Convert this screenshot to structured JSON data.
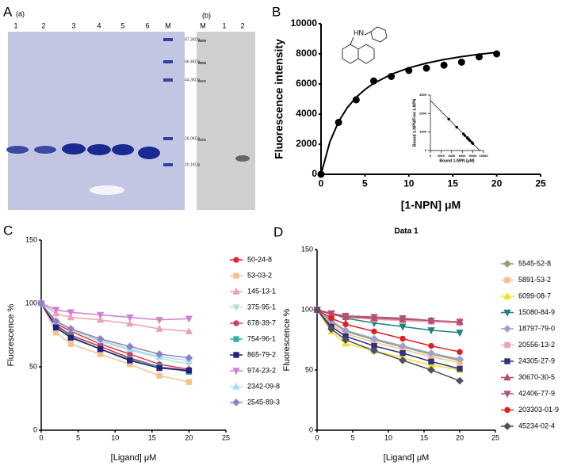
{
  "figure": {
    "panel_labels": [
      "A",
      "B",
      "C",
      "D"
    ],
    "gel_a": {
      "label": "(a)",
      "lanes": [
        "1",
        "2",
        "3",
        "4",
        "5",
        "6",
        "M"
      ],
      "markers": [
        "97.2KDa",
        "66.4KDa",
        "44.3KDa",
        "29.0KDa",
        "20.1KDa"
      ]
    },
    "gel_b": {
      "label": "(b)",
      "lanes": [
        "M",
        "1",
        "2"
      ]
    },
    "molecule_label": "HN"
  },
  "chart_data": [
    {
      "type": "line",
      "xlabel": "[1-NPN]  μM",
      "ylabel": "Fluorescence intensity",
      "xlim": [
        0,
        25
      ],
      "xticks": [
        0,
        5,
        10,
        15,
        20,
        25
      ],
      "ylim": [
        0,
        10000
      ],
      "yticks": [
        0,
        2000,
        4000,
        6000,
        8000,
        10000
      ],
      "series": [
        {
          "color": "#000000",
          "marker": "circle",
          "line": false,
          "x": [
            0,
            2,
            4,
            6,
            8,
            10,
            12,
            14,
            16,
            18,
            20
          ],
          "values": [
            0,
            3450,
            4950,
            6200,
            6500,
            6900,
            7050,
            7250,
            7450,
            7800,
            8000
          ]
        },
        {
          "color": "#000000",
          "line": true,
          "x": [
            0,
            1,
            2,
            3,
            4,
            5,
            6,
            8,
            10,
            12,
            14,
            16,
            18,
            20
          ],
          "values": [
            0,
            2146,
            3500,
            4433,
            5114,
            5633,
            6042,
            6645,
            7069,
            7382,
            7624,
            7816,
            7971,
            8101
          ]
        }
      ]
    },
    {
      "type": "line",
      "xlabel": "Bound 1-NPN (μM)",
      "ylabel": "Bound 1-NPN/Free 1-NPN",
      "xlim": [
        0,
        10000
      ],
      "xticks": [
        0,
        2000,
        4000,
        6000,
        8000,
        10000
      ],
      "ylim": [
        0,
        3000
      ],
      "yticks": [
        0,
        1000,
        2000,
        3000
      ],
      "series": [
        {
          "color": "#000000",
          "marker": "circle",
          "line": false,
          "x": [
            3450,
            4950,
            6200,
            6500,
            6900,
            7050,
            7250,
            7450,
            7800,
            8000
          ],
          "values": [
            1700,
            1260,
            900,
            810,
            700,
            650,
            595,
            535,
            435,
            375
          ]
        },
        {
          "color": "#000000",
          "line": true,
          "x": [
            0,
            9300
          ],
          "values": [
            2700,
            0
          ]
        }
      ]
    },
    {
      "type": "line",
      "xlabel": "[Ligand] μM",
      "ylabel": "Fluorescence %",
      "xlim": [
        0,
        25
      ],
      "xticks": [
        0,
        5,
        10,
        15,
        20,
        25
      ],
      "ylim": [
        0,
        150
      ],
      "yticks": [
        0,
        50,
        100,
        150
      ],
      "legend": "right",
      "x": [
        0,
        2,
        4,
        8,
        12,
        16,
        20
      ],
      "series": [
        {
          "name": "50-24-8",
          "color": "#e02828",
          "marker": "circle",
          "values": [
            100,
            83,
            75,
            66,
            57,
            50,
            47
          ]
        },
        {
          "name": "53-03-2",
          "color": "#f5c28a",
          "marker": "square",
          "values": [
            100,
            77,
            68,
            60,
            52,
            43,
            38
          ]
        },
        {
          "name": "145-13-1",
          "color": "#f0a0b4",
          "marker": "triangle",
          "values": [
            100,
            92,
            89,
            87,
            84,
            80,
            78
          ]
        },
        {
          "name": "375-95-1",
          "color": "#c0e0c8",
          "marker": "triangle-down",
          "values": [
            100,
            85,
            79,
            70,
            63,
            57,
            52
          ]
        },
        {
          "name": "678-39-7",
          "color": "#d04060",
          "marker": "circle",
          "values": [
            100,
            84,
            78,
            68,
            60,
            52,
            48
          ]
        },
        {
          "name": "754-96-1",
          "color": "#30b0b0",
          "marker": "square",
          "values": [
            100,
            82,
            74,
            64,
            56,
            50,
            46
          ]
        },
        {
          "name": "865-79-2",
          "color": "#202080",
          "marker": "square",
          "values": [
            100,
            81,
            73,
            64,
            55,
            49,
            47
          ]
        },
        {
          "name": "974-23-2",
          "color": "#d080d0",
          "marker": "triangle-down",
          "values": [
            100,
            95,
            93,
            91,
            89,
            87,
            88
          ]
        },
        {
          "name": "2342-09-8",
          "color": "#a0e0f0",
          "marker": "triangle",
          "values": [
            100,
            86,
            80,
            71,
            64,
            58,
            55
          ]
        },
        {
          "name": "2545-89-3",
          "color": "#9080c8",
          "marker": "diamond",
          "values": [
            100,
            86,
            80,
            72,
            66,
            60,
            57
          ]
        }
      ]
    },
    {
      "type": "line",
      "title": "Data 1",
      "xlabel": "[Ligand] μM",
      "ylabel": "Fluorescence %",
      "xlim": [
        0,
        25
      ],
      "xticks": [
        0,
        5,
        10,
        15,
        20,
        25
      ],
      "ylim": [
        0,
        150
      ],
      "yticks": [
        0,
        50,
        100,
        150
      ],
      "legend": "right",
      "x": [
        0,
        2,
        4,
        8,
        12,
        16,
        20
      ],
      "series": [
        {
          "name": "5545-52-8",
          "color": "#90a070",
          "marker": "diamond",
          "values": [
            100,
            90,
            82,
            75,
            69,
            63,
            58
          ]
        },
        {
          "name": "5891-53-2",
          "color": "#f5c090",
          "marker": "square",
          "values": [
            100,
            88,
            80,
            73,
            67,
            61,
            56
          ]
        },
        {
          "name": "6099-08-7",
          "color": "#f0e020",
          "marker": "triangle",
          "values": [
            100,
            82,
            72,
            66,
            60,
            54,
            50
          ]
        },
        {
          "name": "15080-84-9",
          "color": "#208080",
          "marker": "triangle-down",
          "values": [
            100,
            97,
            93,
            89,
            86,
            83,
            81
          ]
        },
        {
          "name": "18797-79-0",
          "color": "#a0a0d0",
          "marker": "diamond",
          "values": [
            100,
            91,
            83,
            76,
            70,
            64,
            59
          ]
        },
        {
          "name": "20556-13-2",
          "color": "#f0a0c0",
          "marker": "square",
          "values": [
            100,
            97,
            94,
            92,
            91,
            90,
            89
          ]
        },
        {
          "name": "24305-27-9",
          "color": "#303080",
          "marker": "square",
          "values": [
            100,
            86,
            78,
            70,
            64,
            57,
            51
          ]
        },
        {
          "name": "30670-30-5",
          "color": "#b05060",
          "marker": "triangle",
          "values": [
            100,
            96,
            94,
            93,
            92,
            91,
            90
          ]
        },
        {
          "name": "42406-77-9",
          "color": "#b05080",
          "marker": "triangle-down",
          "values": [
            100,
            97,
            95,
            94,
            93,
            91,
            90
          ]
        },
        {
          "name": "203303-01-9",
          "color": "#e02020",
          "marker": "circle",
          "values": [
            100,
            93,
            88,
            82,
            76,
            70,
            65
          ]
        },
        {
          "name": "45234-02-4",
          "color": "#505060",
          "marker": "diamond",
          "values": [
            100,
            84,
            75,
            66,
            58,
            50,
            41
          ]
        }
      ]
    }
  ]
}
